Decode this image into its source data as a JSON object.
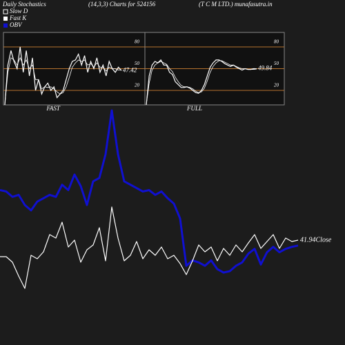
{
  "header": {
    "left": "Daily Stochastics",
    "center": "(14,3,3) Charts for 524156",
    "right": "(T C M LTD.) munafasutra.in"
  },
  "chart_data": [
    {
      "type": "line",
      "title": "FAST",
      "ylim": [
        0,
        100
      ],
      "yticks": [
        20,
        50,
        80
      ],
      "grid": true,
      "grid_color": "#b8732e",
      "series": [
        {
          "name": "Fast K",
          "color": "#ffffff",
          "values": [
            0,
            55,
            75,
            60,
            50,
            80,
            45,
            75,
            40,
            65,
            20,
            35,
            15,
            25,
            30,
            20,
            25,
            10,
            15,
            20,
            35,
            50,
            60,
            62,
            70,
            55,
            68,
            45,
            60,
            50,
            65,
            45,
            55,
            40,
            60,
            50,
            45,
            52,
            47.42
          ]
        },
        {
          "name": "Slow D",
          "color": "#ffffff",
          "values": [
            0,
            45,
            65,
            62,
            55,
            65,
            55,
            62,
            50,
            55,
            35,
            35,
            22,
            25,
            24,
            25,
            22,
            18,
            15,
            17,
            25,
            38,
            52,
            58,
            62,
            60,
            62,
            55,
            57,
            52,
            58,
            52,
            52,
            47,
            52,
            50,
            50,
            48,
            48
          ]
        }
      ]
    },
    {
      "type": "line",
      "title": "FULL",
      "ylim": [
        0,
        100
      ],
      "yticks": [
        20,
        50,
        80
      ],
      "grid": true,
      "grid_color": "#b8732e",
      "series": [
        {
          "name": "Fast K",
          "color": "#ffffff",
          "values": [
            0,
            40,
            55,
            60,
            58,
            62,
            55,
            55,
            45,
            42,
            32,
            28,
            24,
            24,
            25,
            23,
            20,
            17,
            16,
            20,
            28,
            40,
            52,
            58,
            62,
            62,
            60,
            57,
            55,
            53,
            55,
            52,
            50,
            48,
            50,
            49,
            49,
            50,
            49.84
          ]
        },
        {
          "name": "Slow D",
          "color": "#ffffff",
          "values": [
            0,
            30,
            48,
            55,
            58,
            60,
            58,
            56,
            50,
            46,
            38,
            32,
            27,
            25,
            25,
            24,
            22,
            19,
            17,
            18,
            23,
            33,
            45,
            53,
            58,
            61,
            61,
            59,
            57,
            55,
            55,
            53,
            51,
            50,
            50,
            49,
            49,
            49,
            49.5
          ]
        }
      ]
    },
    {
      "type": "line",
      "series": [
        {
          "name": "OBV",
          "color": "#1010d0",
          "values": [
            132000,
            130000,
            122000,
            125000,
            110000,
            102000,
            115000,
            120000,
            125000,
            122000,
            140000,
            132000,
            155000,
            138000,
            110000,
            145000,
            150000,
            185000,
            250000,
            185000,
            145000,
            140000,
            135000,
            130000,
            132000,
            125000,
            130000,
            120000,
            112000,
            90000,
            20000,
            28000,
            25000,
            20000,
            28000,
            15000,
            10000,
            12000,
            20000,
            25000,
            38000,
            45000,
            22000,
            40000,
            48000,
            40000,
            45000,
            48000,
            50000
          ]
        },
        {
          "name": "Close",
          "color": "#ffffff",
          "values": [
            39.54,
            39.54,
            38.74,
            36.74,
            34.94,
            39.74,
            39.24,
            40.24,
            42.74,
            42.24,
            44.54,
            40.94,
            41.94,
            38.74,
            40.54,
            41.24,
            43.74,
            38.94,
            46.74,
            42.24,
            38.94,
            39.74,
            41.74,
            39.24,
            40.54,
            39.74,
            40.94,
            39.24,
            39.74,
            38.54,
            36.94,
            38.94,
            41.24,
            40.24,
            40.94,
            38.94,
            40.74,
            39.74,
            41.24,
            40.24,
            41.54,
            42.74,
            40.74,
            41.74,
            42.74,
            40.74,
            42.24,
            41.74,
            41.94
          ]
        }
      ]
    }
  ]
}
